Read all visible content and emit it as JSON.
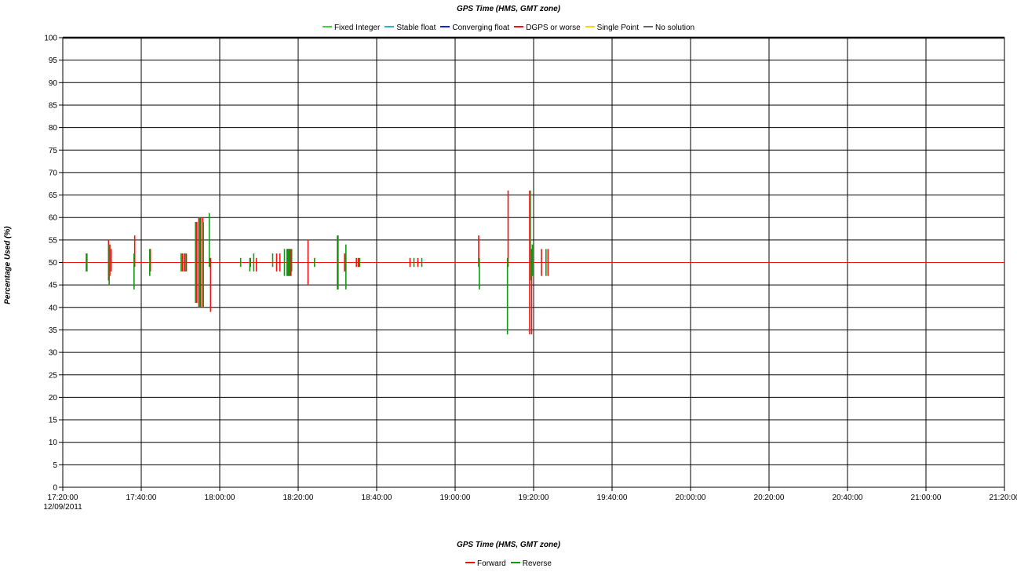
{
  "chart_data": {
    "type": "line",
    "title": "GPS Time (HMS, GMT zone)",
    "xlabel": "GPS Time (HMS, GMT zone)",
    "ylabel": "Percentage Used (%)",
    "ylim": [
      0,
      100
    ],
    "xlim": [
      "17:20:00",
      "21:20:00"
    ],
    "x_ticks": [
      "17:20:00",
      "17:40:00",
      "18:00:00",
      "18:20:00",
      "18:40:00",
      "19:00:00",
      "19:20:00",
      "19:40:00",
      "20:00:00",
      "20:20:00",
      "20:40:00",
      "21:00:00",
      "21:20:00"
    ],
    "x_first_tick_date": "12/09/2011",
    "y_ticks": [
      0,
      5,
      10,
      15,
      20,
      25,
      30,
      35,
      40,
      45,
      50,
      55,
      60,
      65,
      70,
      75,
      80,
      85,
      90,
      95,
      100
    ],
    "grid": true,
    "legend_top": [
      {
        "name": "Fixed Integer",
        "color": "#33dd33"
      },
      {
        "name": "Stable float",
        "color": "#22bbbb"
      },
      {
        "name": "Converging float",
        "color": "#1122dd"
      },
      {
        "name": "DGPS or worse",
        "color": "#ee1111"
      },
      {
        "name": "Single Point",
        "color": "#eedd00"
      },
      {
        "name": "No solution",
        "color": "#666666"
      }
    ],
    "legend_bottom": [
      {
        "name": "Forward",
        "color": "#ee1111"
      },
      {
        "name": "Reverse",
        "color": "#119911"
      }
    ],
    "baseline": 50,
    "series": [
      {
        "name": "Forward",
        "color": "#ee1111",
        "spikes": [
          {
            "t": "17:26:00",
            "low": 48,
            "high": 52
          },
          {
            "t": "17:31:40",
            "low": 46,
            "high": 55
          },
          {
            "t": "17:32:00",
            "low": 47,
            "high": 54
          },
          {
            "t": "17:32:20",
            "low": 48,
            "high": 53
          },
          {
            "t": "17:38:20",
            "low": 49,
            "high": 56
          },
          {
            "t": "17:42:20",
            "low": 48,
            "high": 53
          },
          {
            "t": "17:50:30",
            "low": 48,
            "high": 52
          },
          {
            "t": "17:51:00",
            "low": 48,
            "high": 52
          },
          {
            "t": "17:51:30",
            "low": 48,
            "high": 52
          },
          {
            "t": "17:54:10",
            "low": 41,
            "high": 59
          },
          {
            "t": "17:54:40",
            "low": 40,
            "high": 60
          },
          {
            "t": "17:55:10",
            "low": 40,
            "high": 60
          },
          {
            "t": "17:55:40",
            "low": 40,
            "high": 60
          },
          {
            "t": "17:57:40",
            "low": 39,
            "high": 51
          },
          {
            "t": "18:07:50",
            "low": 49,
            "high": 51
          },
          {
            "t": "18:09:20",
            "low": 48,
            "high": 51
          },
          {
            "t": "18:14:30",
            "low": 48,
            "high": 52
          },
          {
            "t": "18:15:20",
            "low": 48,
            "high": 52
          },
          {
            "t": "18:17:10",
            "low": 47,
            "high": 53
          },
          {
            "t": "18:17:30",
            "low": 47,
            "high": 53
          },
          {
            "t": "18:17:50",
            "low": 47,
            "high": 53
          },
          {
            "t": "18:18:10",
            "low": 47,
            "high": 53
          },
          {
            "t": "18:22:30",
            "low": 45,
            "high": 55
          },
          {
            "t": "18:30:00",
            "low": 44,
            "high": 56
          },
          {
            "t": "18:31:50",
            "low": 48,
            "high": 52
          },
          {
            "t": "18:34:50",
            "low": 49,
            "high": 51
          },
          {
            "t": "18:35:20",
            "low": 49,
            "high": 51
          },
          {
            "t": "18:48:30",
            "low": 49,
            "high": 51
          },
          {
            "t": "18:50:30",
            "low": 49,
            "high": 51
          },
          {
            "t": "19:06:00",
            "low": 49,
            "high": 56
          },
          {
            "t": "19:13:30",
            "low": 49,
            "high": 66
          },
          {
            "t": "19:19:00",
            "low": 34,
            "high": 66
          },
          {
            "t": "19:19:30",
            "low": 34,
            "high": 53
          },
          {
            "t": "19:22:00",
            "low": 47,
            "high": 53
          },
          {
            "t": "19:23:40",
            "low": 47,
            "high": 53
          }
        ]
      },
      {
        "name": "Reverse",
        "color": "#119911",
        "spikes": [
          {
            "t": "17:26:10",
            "low": 48,
            "high": 52
          },
          {
            "t": "17:31:50",
            "low": 45,
            "high": 54
          },
          {
            "t": "17:38:10",
            "low": 44,
            "high": 52
          },
          {
            "t": "17:42:10",
            "low": 47,
            "high": 53
          },
          {
            "t": "17:50:10",
            "low": 48,
            "high": 52
          },
          {
            "t": "17:51:10",
            "low": 48,
            "high": 52
          },
          {
            "t": "17:53:50",
            "low": 41,
            "high": 59
          },
          {
            "t": "17:54:50",
            "low": 40,
            "high": 60
          },
          {
            "t": "17:55:50",
            "low": 40,
            "high": 59
          },
          {
            "t": "17:57:20",
            "low": 49,
            "high": 61
          },
          {
            "t": "18:05:20",
            "low": 49,
            "high": 51
          },
          {
            "t": "18:07:40",
            "low": 48,
            "high": 51
          },
          {
            "t": "18:08:40",
            "low": 48,
            "high": 52
          },
          {
            "t": "18:13:30",
            "low": 49,
            "high": 52
          },
          {
            "t": "18:16:30",
            "low": 47,
            "high": 53
          },
          {
            "t": "18:17:20",
            "low": 47,
            "high": 53
          },
          {
            "t": "18:17:40",
            "low": 47,
            "high": 53
          },
          {
            "t": "18:18:20",
            "low": 48,
            "high": 53
          },
          {
            "t": "18:24:10",
            "low": 49,
            "high": 51
          },
          {
            "t": "18:30:10",
            "low": 44,
            "high": 56
          },
          {
            "t": "18:32:10",
            "low": 44,
            "high": 54
          },
          {
            "t": "18:35:40",
            "low": 49,
            "high": 51
          },
          {
            "t": "18:49:30",
            "low": 49,
            "high": 51
          },
          {
            "t": "18:51:30",
            "low": 49,
            "high": 51
          },
          {
            "t": "19:06:10",
            "low": 44,
            "high": 51
          },
          {
            "t": "19:13:20",
            "low": 34,
            "high": 51
          },
          {
            "t": "19:19:10",
            "low": 46,
            "high": 66
          },
          {
            "t": "19:19:40",
            "low": 47,
            "high": 54
          },
          {
            "t": "19:23:10",
            "low": 47,
            "high": 53
          }
        ]
      }
    ]
  }
}
